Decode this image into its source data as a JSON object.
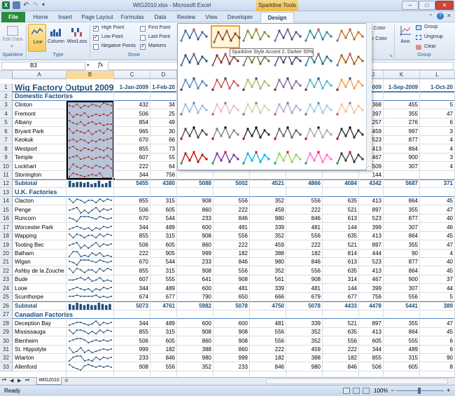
{
  "window": {
    "title": "WIG2010.xlsx - Microsoft Excel",
    "contextual_group": "Sparkline Tools"
  },
  "ribbon_tabs": [
    "File",
    "Home",
    "Insert",
    "Page Layout",
    "Formulas",
    "Data",
    "Review",
    "View",
    "Developer",
    "Design"
  ],
  "ribbon": {
    "sparkline_group": {
      "edit_data": "Edit Data",
      "edit_data_arrow": "▾",
      "label": "Sparkline"
    },
    "type_group": {
      "line": "Line",
      "column": "Column",
      "winloss": "Win/Loss",
      "label": "Type"
    },
    "show_group": {
      "high_point": {
        "label": "High Point",
        "checked": true
      },
      "low_point": {
        "label": "Low Point",
        "checked": true
      },
      "negative_points": {
        "label": "Negative Points",
        "checked": false
      },
      "first_point": {
        "label": "First Point",
        "checked": false
      },
      "last_point": {
        "label": "Last Point",
        "checked": false
      },
      "markers": {
        "label": "Markers",
        "checked": true
      },
      "label": "Show"
    },
    "style_group": {
      "color": "Color",
      "marker_color": "r Color"
    },
    "group_group": {
      "axis": "Axis",
      "group": "Group",
      "ungroup": "Ungroup",
      "clear": "Clear",
      "label": "Group"
    }
  },
  "formula_bar": {
    "name_box": "B3",
    "fx": "fx",
    "formula": ""
  },
  "gallery": {
    "tooltip": "Sparkline Style Accent 2, Darker 50%",
    "rows": [
      {
        "colors": [
          "#3a5f93",
          "#8e3430",
          "#6d8a32",
          "#5b4283",
          "#2d8197",
          "#c06b22"
        ],
        "markers": [
          "#c0504d",
          "#4f81bd"
        ]
      },
      {
        "colors": [
          "#2b4a73",
          "#7a2a26",
          "#56702a",
          "#4a356b",
          "#236a7c",
          "#a25a1c"
        ],
        "markers": [
          "#c0504d",
          "#4f81bd"
        ]
      },
      {
        "colors": [
          "#4f81bd",
          "#c0504d",
          "#9bbb59",
          "#8064a2",
          "#4bacc6",
          "#f79646"
        ],
        "markers": [
          "#1f497d",
          "#632423"
        ]
      },
      {
        "colors": [
          "#95b3d7",
          "#e6b9b8",
          "#c4d79b",
          "#b3a2c7",
          "#93cddd",
          "#fabf8f"
        ],
        "markers": [
          "#4f81bd",
          "#c0504d"
        ]
      },
      {
        "colors": [
          "#404040",
          "#7f7f7f",
          "#1f1f1f",
          "#595959",
          "#a6a6a6",
          "#262626"
        ],
        "markers": [
          "#000000",
          "#c00000"
        ]
      },
      {
        "colors": [
          "#c00000",
          "#7030a0",
          "#00b0f0",
          "#92d050",
          "#ff66cc",
          "#333333"
        ],
        "markers": [
          "#ff0000",
          "#00b050"
        ]
      }
    ]
  },
  "columns": [
    "A",
    "B",
    "C",
    "D",
    "J",
    "K",
    "L"
  ],
  "date_headers": {
    "C": "1-Jan-2009",
    "D": "1-Feb-20",
    "J": "009",
    "K": "1-Sep-2009",
    "L": "1-Oct-20"
  },
  "sheet_title": "Wig Factory Output 2009",
  "rows": [
    {
      "num": "1",
      "type": "title"
    },
    {
      "num": "2",
      "type": "section",
      "label": "Domestic Factories"
    },
    {
      "num": "3",
      "type": "data",
      "label": "Clinton",
      "spark": "domestic",
      "C": "432",
      "D": "34",
      "J": "368",
      "K": "455",
      "L": "5",
      "sv": [
        4,
        3,
        5,
        2,
        4,
        3,
        5,
        4,
        3,
        6,
        5,
        4
      ]
    },
    {
      "num": "4",
      "type": "data",
      "label": "Fremont",
      "spark": "domestic",
      "C": "506",
      "D": "25",
      "J": "397",
      "K": "355",
      "L": "47",
      "sv": [
        5,
        2,
        4,
        3,
        5,
        2,
        3,
        4,
        3,
        4,
        3,
        5
      ]
    },
    {
      "num": "5",
      "type": "data",
      "label": "Albany",
      "spark": "domestic",
      "C": "854",
      "D": "49",
      "J": "257",
      "K": "276",
      "L": "6",
      "sv": [
        6,
        4,
        3,
        5,
        2,
        4,
        5,
        3,
        4,
        2,
        3,
        3
      ]
    },
    {
      "num": "6",
      "type": "data",
      "label": "Bryant Park",
      "spark": "domestic",
      "C": "965",
      "D": "30",
      "J": "459",
      "K": "997",
      "L": "3",
      "sv": [
        6,
        3,
        5,
        4,
        3,
        5,
        2,
        4,
        5,
        3,
        6,
        5
      ]
    },
    {
      "num": "7",
      "type": "data",
      "label": "Keokuk",
      "spark": "domestic",
      "C": "670",
      "D": "66",
      "J": "523",
      "K": "877",
      "L": "4",
      "sv": [
        4,
        5,
        3,
        5,
        4,
        2,
        4,
        3,
        5,
        4,
        5,
        6
      ]
    },
    {
      "num": "8",
      "type": "data",
      "label": "Westport",
      "spark": "domestic",
      "C": "855",
      "D": "73",
      "J": "413",
      "K": "864",
      "L": "4",
      "sv": [
        5,
        6,
        4,
        3,
        5,
        4,
        3,
        5,
        4,
        3,
        5,
        4
      ]
    },
    {
      "num": "9",
      "type": "data",
      "label": "Temple",
      "spark": "domestic",
      "C": "607",
      "D": "55",
      "J": "467",
      "K": "900",
      "L": "3",
      "sv": [
        4,
        5,
        6,
        3,
        4,
        5,
        3,
        4,
        5,
        4,
        6,
        3
      ]
    },
    {
      "num": "10",
      "type": "data",
      "label": "Lockhart",
      "spark": "domestic",
      "C": "222",
      "D": "64",
      "J": "509",
      "K": "307",
      "L": "4",
      "sv": [
        2,
        6,
        4,
        3,
        5,
        4,
        3,
        5,
        4,
        3,
        5,
        3
      ]
    },
    {
      "num": "11",
      "type": "data",
      "label": "Stonington",
      "spark": "domestic",
      "C": "344",
      "D": "756",
      "J": "144",
      "K": "",
      "L": "",
      "sv": [
        3,
        6,
        5,
        4,
        3,
        4,
        5,
        4,
        6,
        2,
        2,
        2
      ]
    },
    {
      "num": "12",
      "type": "subtotal",
      "label": "Subtotal",
      "spark": "bars",
      "C": "5455",
      "D": "4380",
      "E": "5088",
      "F": "5002",
      "G": "4521",
      "H": "4866",
      "I": "4084",
      "J": "4342",
      "K": "5687",
      "L": "371",
      "sv": [
        6,
        4,
        5,
        5,
        4,
        5,
        3,
        4,
        6,
        3,
        4,
        6
      ]
    },
    {
      "num": "13",
      "type": "section",
      "label": "U.K. Factories"
    },
    {
      "num": "14",
      "type": "data",
      "label": "Clacton",
      "spark": "uk",
      "C": "855",
      "D": "315",
      "E": "908",
      "F": "556",
      "G": "352",
      "H": "556",
      "I": "635",
      "J": "413",
      "K": "864",
      "L": "45",
      "sv": [
        6,
        3,
        6,
        5,
        3,
        5,
        5,
        3,
        6,
        4,
        6,
        5
      ]
    },
    {
      "num": "15",
      "type": "data",
      "label": "Penge",
      "spark": "uk",
      "C": "506",
      "D": "605",
      "E": "860",
      "F": "222",
      "G": "459",
      "H": "222",
      "I": "521",
      "J": "897",
      "K": "355",
      "L": "47",
      "sv": [
        4,
        5,
        6,
        2,
        4,
        2,
        4,
        6,
        3,
        5,
        4,
        5
      ]
    },
    {
      "num": "16",
      "type": "data",
      "label": "Runcorn",
      "spark": "uk",
      "C": "670",
      "D": "544",
      "E": "233",
      "F": "846",
      "G": "980",
      "H": "846",
      "I": "613",
      "J": "523",
      "K": "877",
      "L": "40",
      "sv": [
        5,
        4,
        2,
        6,
        6,
        6,
        5,
        4,
        6,
        5,
        4,
        5
      ]
    },
    {
      "num": "17",
      "type": "data",
      "label": "Worcester Park",
      "spark": "uk",
      "C": "344",
      "D": "489",
      "E": "600",
      "F": "481",
      "G": "339",
      "H": "481",
      "I": "144",
      "J": "399",
      "K": "307",
      "L": "46",
      "sv": [
        3,
        4,
        5,
        4,
        3,
        4,
        2,
        4,
        3,
        5,
        4,
        5
      ]
    },
    {
      "num": "18",
      "type": "data",
      "label": "Wapping",
      "spark": "uk",
      "C": "855",
      "D": "315",
      "E": "908",
      "F": "556",
      "G": "352",
      "H": "556",
      "I": "635",
      "J": "413",
      "K": "864",
      "L": "45",
      "sv": [
        6,
        3,
        6,
        5,
        3,
        5,
        5,
        3,
        6,
        4,
        6,
        5
      ]
    },
    {
      "num": "19",
      "type": "data",
      "label": "Tooting Bec",
      "spark": "uk",
      "C": "506",
      "D": "605",
      "E": "860",
      "F": "222",
      "G": "459",
      "H": "222",
      "I": "521",
      "J": "897",
      "K": "355",
      "L": "47",
      "sv": [
        4,
        5,
        6,
        2,
        4,
        2,
        4,
        6,
        3,
        5,
        4,
        5
      ]
    },
    {
      "num": "20",
      "type": "data",
      "label": "Balham",
      "spark": "uk",
      "C": "222",
      "D": "905",
      "E": "999",
      "F": "182",
      "G": "388",
      "H": "182",
      "I": "814",
      "J": "444",
      "K": "90",
      "L": "4",
      "sv": [
        2,
        6,
        6,
        2,
        3,
        2,
        5,
        3,
        5,
        2,
        3,
        2
      ]
    },
    {
      "num": "21",
      "type": "data",
      "label": "Wigan",
      "spark": "uk",
      "C": "670",
      "D": "544",
      "E": "233",
      "F": "846",
      "G": "980",
      "H": "846",
      "I": "613",
      "J": "523",
      "K": "877",
      "L": "40",
      "sv": [
        5,
        4,
        2,
        6,
        6,
        6,
        5,
        4,
        6,
        5,
        4,
        5
      ]
    },
    {
      "num": "22",
      "type": "data",
      "label": "Ashby de la Zouche",
      "spark": "uk",
      "C": "855",
      "D": "315",
      "E": "908",
      "F": "556",
      "G": "352",
      "H": "556",
      "I": "635",
      "J": "413",
      "K": "864",
      "L": "45",
      "sv": [
        6,
        3,
        6,
        5,
        3,
        5,
        5,
        3,
        6,
        4,
        6,
        5
      ]
    },
    {
      "num": "23",
      "type": "data",
      "label": "Bude",
      "spark": "uk",
      "C": "607",
      "D": "555",
      "E": "641",
      "F": "908",
      "G": "561",
      "H": "908",
      "I": "314",
      "J": "467",
      "K": "900",
      "L": "37",
      "sv": [
        4,
        4,
        5,
        6,
        4,
        6,
        3,
        4,
        6,
        3,
        4,
        3
      ]
    },
    {
      "num": "24",
      "type": "data",
      "label": "Looe",
      "spark": "uk",
      "C": "344",
      "D": "489",
      "E": "600",
      "F": "481",
      "G": "339",
      "H": "481",
      "I": "144",
      "J": "399",
      "K": "307",
      "L": "44",
      "sv": [
        3,
        4,
        5,
        4,
        3,
        4,
        2,
        4,
        3,
        5,
        4,
        5
      ]
    },
    {
      "num": "25",
      "type": "data",
      "label": "Scunthorpe",
      "spark": "uk",
      "C": "674",
      "D": "677",
      "E": "790",
      "F": "650",
      "G": "666",
      "H": "679",
      "I": "677",
      "J": "756",
      "K": "556",
      "L": "5",
      "sv": [
        5,
        5,
        6,
        5,
        5,
        5,
        5,
        6,
        4,
        5,
        4,
        5
      ]
    },
    {
      "num": "26",
      "type": "subtotal",
      "label": "Subtotal",
      "spark": "bars",
      "C": "5073",
      "D": "4761",
      "E": "5982",
      "F": "5078",
      "G": "4750",
      "H": "5078",
      "I": "4433",
      "J": "4478",
      "K": "5441",
      "L": "389",
      "sv": [
        5,
        4,
        6,
        5,
        4,
        5,
        4,
        4,
        6,
        5,
        4,
        5
      ]
    },
    {
      "num": "27",
      "type": "section",
      "label": "Canadian Factories"
    },
    {
      "num": "28",
      "type": "data",
      "label": "Deception Bay",
      "spark": "uk",
      "C": "344",
      "D": "489",
      "E": "600",
      "F": "600",
      "G": "481",
      "H": "339",
      "I": "521",
      "J": "897",
      "K": "355",
      "L": "47",
      "sv": [
        3,
        4,
        5,
        5,
        4,
        3,
        4,
        6,
        3,
        5,
        4,
        5
      ]
    },
    {
      "num": "29",
      "type": "data",
      "label": "Mississauga",
      "spark": "uk",
      "C": "855",
      "D": "315",
      "E": "908",
      "F": "908",
      "G": "556",
      "H": "352",
      "I": "635",
      "J": "413",
      "K": "864",
      "L": "45",
      "sv": [
        6,
        3,
        6,
        6,
        5,
        3,
        5,
        3,
        6,
        4,
        6,
        5
      ]
    },
    {
      "num": "30",
      "type": "data",
      "label": "Blenheim",
      "spark": "uk",
      "C": "506",
      "D": "605",
      "E": "860",
      "F": "908",
      "G": "556",
      "H": "352",
      "I": "556",
      "J": "605",
      "K": "555",
      "L": "6",
      "sv": [
        4,
        5,
        6,
        6,
        5,
        3,
        4,
        5,
        4,
        5,
        4,
        5
      ]
    },
    {
      "num": "31",
      "type": "data",
      "label": "St. Hippolyte",
      "spark": "uk",
      "C": "999",
      "D": "182",
      "E": "388",
      "F": "860",
      "G": "222",
      "H": "459",
      "I": "222",
      "J": "344",
      "K": "489",
      "L": "6",
      "sv": [
        6,
        2,
        3,
        6,
        2,
        4,
        2,
        3,
        4,
        5,
        4,
        5
      ]
    },
    {
      "num": "32",
      "type": "data",
      "label": "Wiarton",
      "spark": "uk",
      "C": "233",
      "D": "846",
      "E": "980",
      "F": "999",
      "G": "182",
      "H": "388",
      "I": "182",
      "J": "855",
      "K": "315",
      "L": "90",
      "sv": [
        2,
        5,
        6,
        6,
        2,
        3,
        2,
        5,
        3,
        5,
        4,
        5
      ]
    },
    {
      "num": "33",
      "type": "data",
      "label": "Allenford",
      "spark": "uk",
      "C": "908",
      "D": "556",
      "E": "352",
      "F": "233",
      "G": "846",
      "H": "980",
      "I": "846",
      "J": "506",
      "K": "605",
      "L": "8",
      "sv": [
        6,
        4,
        3,
        2,
        5,
        6,
        5,
        4,
        5,
        4,
        5,
        4
      ]
    }
  ],
  "sheet_tab": "WIG2010",
  "status": {
    "ready": "Ready",
    "zoom": "100%",
    "minus": "−",
    "plus": "+"
  },
  "colors": {
    "title_blue": "#1f4e79",
    "section_blue": "#1f4e79",
    "spark_domestic": "#c0504d",
    "spark_uk": "#1f4e79",
    "selection": "#b8c4d8"
  }
}
